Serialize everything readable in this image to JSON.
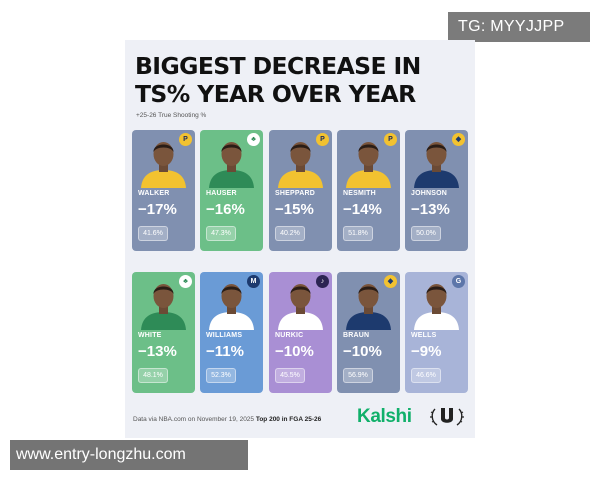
{
  "watermark_top": "TG: MYYJJPP",
  "watermark_bottom": "www.entry-longzhu.com",
  "headline_line1": "BIGGEST DECREASE IN",
  "headline_line2": "TS% YEAR OVER YEAR",
  "subnote": "+25-26 True Shooting %",
  "players": [
    {
      "name": "WALKER",
      "change": "−17%",
      "ts": "41.6%",
      "color": "slate",
      "team": "pacers",
      "jersey": "#f2c230"
    },
    {
      "name": "HAUSER",
      "change": "−16%",
      "ts": "47.3%",
      "color": "green",
      "team": "celtics",
      "jersey": "#2e8b57"
    },
    {
      "name": "SHEPPARD",
      "change": "−15%",
      "ts": "40.2%",
      "color": "slate",
      "team": "pacers",
      "jersey": "#f2c230"
    },
    {
      "name": "NESMITH",
      "change": "−14%",
      "ts": "51.8%",
      "color": "slate",
      "team": "pacers",
      "jersey": "#f2c230"
    },
    {
      "name": "JOHNSON",
      "change": "−13%",
      "ts": "50.0%",
      "color": "slate",
      "team": "nuggets",
      "jersey": "#1d3a6e"
    },
    {
      "name": "WHITE",
      "change": "−13%",
      "ts": "48.1%",
      "color": "green",
      "team": "celtics",
      "jersey": "#2e8b57"
    },
    {
      "name": "WILLIAMS",
      "change": "−11%",
      "ts": "52.3%",
      "color": "blue",
      "team": "mavericks",
      "jersey": "#ffffff"
    },
    {
      "name": "NURKIC",
      "change": "−10%",
      "ts": "45.5%",
      "color": "purple",
      "team": "jazz",
      "jersey": "#ffffff"
    },
    {
      "name": "BRAUN",
      "change": "−10%",
      "ts": "56.9%",
      "color": "slate",
      "team": "nuggets",
      "jersey": "#1d3a6e"
    },
    {
      "name": "WELLS",
      "change": "−9%",
      "ts": "46.6%",
      "color": "light",
      "team": "grizzlies",
      "jersey": "#ffffff"
    }
  ],
  "footer": {
    "prefix": "Data via NBA.com on November 19, 2025 ",
    "bold": "Top 200 in FGA 25-26"
  },
  "brand": "Kalshi"
}
